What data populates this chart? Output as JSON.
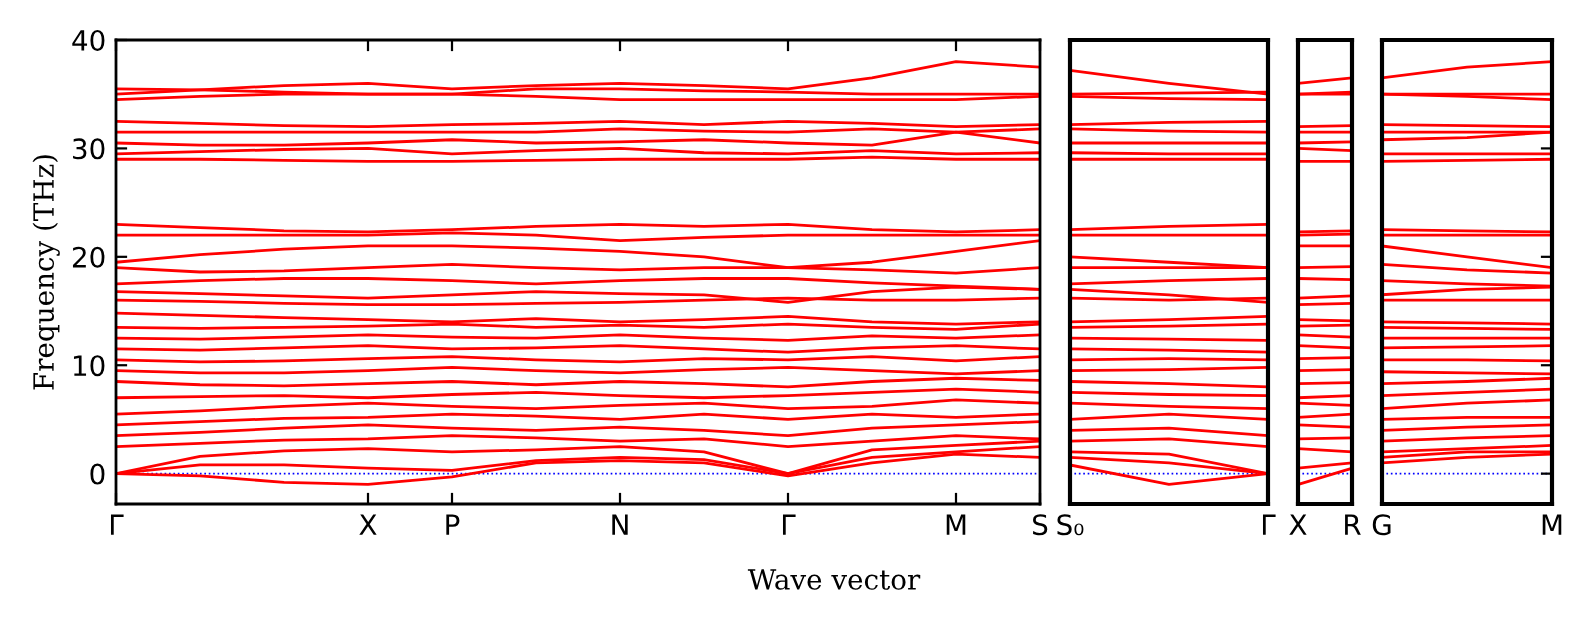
{
  "chart_data": [
    {
      "type": "line",
      "xlabel": "Wave vector",
      "ylabel": "Frequency (THz)",
      "categories": [
        "Γ",
        null,
        null,
        "X",
        "P",
        null,
        "N",
        null,
        "Γ",
        null,
        "M",
        "S"
      ],
      "ylim": [
        -2.8,
        40
      ],
      "yticks": [
        0,
        10,
        20,
        30,
        40
      ],
      "ref_lines": [
        {
          "axis": "y",
          "value": 0,
          "color": "#0000ff",
          "line_style": "dotted"
        }
      ],
      "series": [
        {
          "color": "#ff0000",
          "values": [
            0,
            -0.2,
            -0.8,
            -1.0,
            -0.3,
            1.0,
            1.2,
            1.0,
            -0.2,
            1.0,
            1.8,
            1.5
          ]
        },
        {
          "color": "#ff0000",
          "values": [
            0,
            0.8,
            0.8,
            0.5,
            0.3,
            1.2,
            1.5,
            1.3,
            0,
            1.5,
            2.0,
            2.5
          ]
        },
        {
          "color": "#ff0000",
          "values": [
            0,
            1.6,
            2.1,
            2.3,
            2.0,
            2.2,
            2.5,
            2.0,
            0,
            2.2,
            2.6,
            3.0
          ]
        },
        {
          "color": "#ff0000",
          "values": [
            2.5,
            2.8,
            3.1,
            3.2,
            3.5,
            3.3,
            3.0,
            3.2,
            2.5,
            3.0,
            3.5,
            3.2
          ]
        },
        {
          "color": "#ff0000",
          "values": [
            3.5,
            3.8,
            4.2,
            4.5,
            4.2,
            4.0,
            4.3,
            4.0,
            3.5,
            4.2,
            4.5,
            4.8
          ]
        },
        {
          "color": "#ff0000",
          "values": [
            4.5,
            4.8,
            5.1,
            5.2,
            5.5,
            5.3,
            5.0,
            5.5,
            5.0,
            5.5,
            5.2,
            5.5
          ]
        },
        {
          "color": "#ff0000",
          "values": [
            5.5,
            5.8,
            6.2,
            6.5,
            6.2,
            6.0,
            6.3,
            6.5,
            6.0,
            6.2,
            6.8,
            6.5
          ]
        },
        {
          "color": "#ff0000",
          "values": [
            7,
            7.1,
            7.2,
            7.0,
            7.3,
            7.5,
            7.2,
            7.0,
            7.2,
            7.5,
            7.8,
            7.5
          ]
        },
        {
          "color": "#ff0000",
          "values": [
            8.5,
            8.2,
            8.1,
            8.3,
            8.5,
            8.2,
            8.5,
            8.3,
            8.0,
            8.5,
            8.8,
            8.6
          ]
        },
        {
          "color": "#ff0000",
          "values": [
            9.5,
            9.3,
            9.3,
            9.5,
            9.8,
            9.5,
            9.3,
            9.6,
            9.8,
            9.5,
            9.2,
            9.5
          ]
        },
        {
          "color": "#ff0000",
          "values": [
            10.5,
            10.3,
            10.4,
            10.6,
            10.8,
            10.5,
            10.3,
            10.6,
            10.5,
            10.8,
            10.4,
            10.8
          ]
        },
        {
          "color": "#ff0000",
          "values": [
            11.5,
            11.4,
            11.6,
            11.8,
            11.5,
            11.6,
            11.8,
            11.5,
            11.2,
            11.6,
            11.8,
            11.5
          ]
        },
        {
          "color": "#ff0000",
          "values": [
            12.5,
            12.4,
            12.6,
            12.8,
            12.6,
            12.5,
            12.8,
            12.5,
            12.3,
            12.7,
            12.5,
            12.8
          ]
        },
        {
          "color": "#ff0000",
          "values": [
            13.5,
            13.4,
            13.5,
            13.6,
            13.8,
            13.5,
            13.7,
            13.5,
            13.8,
            13.5,
            13.3,
            13.8
          ]
        },
        {
          "color": "#ff0000",
          "values": [
            14.8,
            14.6,
            14.4,
            14.2,
            14.0,
            14.3,
            14.0,
            14.2,
            14.5,
            14.0,
            13.8,
            14.0
          ]
        },
        {
          "color": "#ff0000",
          "values": [
            16.0,
            15.9,
            15.7,
            15.6,
            15.6,
            15.7,
            15.8,
            16.0,
            16.2,
            16.0,
            16.0,
            16.2
          ]
        },
        {
          "color": "#ff0000",
          "values": [
            16.8,
            16.6,
            16.4,
            16.2,
            16.5,
            16.8,
            16.6,
            16.5,
            15.8,
            16.8,
            17.2,
            17.0
          ]
        },
        {
          "color": "#ff0000",
          "values": [
            17.5,
            17.8,
            18.0,
            18.0,
            17.8,
            17.5,
            17.8,
            18.0,
            18.0,
            17.6,
            17.3,
            17.0
          ]
        },
        {
          "color": "#ff0000",
          "values": [
            19.0,
            18.6,
            18.7,
            19.0,
            19.3,
            19.0,
            18.8,
            19.0,
            19.0,
            18.8,
            18.5,
            19.0
          ]
        },
        {
          "color": "#ff0000",
          "values": [
            19.5,
            20.2,
            20.7,
            21.0,
            21.0,
            20.8,
            20.5,
            20.0,
            19.0,
            19.5,
            20.5,
            21.5
          ]
        },
        {
          "color": "#ff0000",
          "values": [
            22.0,
            22.0,
            22.0,
            22.0,
            22.2,
            22.0,
            21.5,
            21.8,
            22.0,
            22.0,
            22.0,
            22.0
          ]
        },
        {
          "color": "#ff0000",
          "values": [
            23.0,
            22.7,
            22.4,
            22.3,
            22.5,
            22.8,
            23.0,
            22.8,
            23.0,
            22.5,
            22.3,
            22.5
          ]
        },
        {
          "color": "#ff0000",
          "values": [
            29.0,
            29.0,
            28.9,
            28.8,
            28.8,
            28.9,
            29.0,
            29.0,
            29.0,
            29.2,
            29.0,
            29.0
          ]
        },
        {
          "color": "#ff0000",
          "values": [
            29.5,
            29.7,
            29.9,
            30.0,
            29.5,
            29.8,
            30.0,
            29.6,
            29.5,
            29.8,
            29.5,
            29.6
          ]
        },
        {
          "color": "#ff0000",
          "values": [
            30.5,
            30.3,
            30.3,
            30.5,
            30.8,
            30.5,
            30.6,
            30.8,
            30.5,
            30.3,
            31.5,
            30.5
          ]
        },
        {
          "color": "#ff0000",
          "values": [
            31.5,
            31.5,
            31.5,
            31.5,
            31.5,
            31.5,
            31.8,
            31.6,
            31.5,
            31.8,
            31.5,
            31.8
          ]
        },
        {
          "color": "#ff0000",
          "values": [
            32.5,
            32.3,
            32.1,
            32.0,
            32.2,
            32.3,
            32.5,
            32.2,
            32.5,
            32.3,
            32.0,
            32.2
          ]
        },
        {
          "color": "#ff0000",
          "values": [
            34.5,
            34.8,
            35.0,
            35.0,
            35.0,
            34.8,
            34.5,
            34.5,
            34.5,
            34.5,
            34.5,
            34.8
          ]
        },
        {
          "color": "#ff0000",
          "values": [
            35.0,
            35.4,
            35.8,
            36.0,
            35.5,
            35.8,
            36.0,
            35.8,
            35.5,
            36.5,
            38.0,
            37.5
          ]
        },
        {
          "color": "#ff0000",
          "values": [
            35.5,
            35.4,
            35.2,
            35.0,
            35.0,
            35.5,
            35.5,
            35.3,
            35.2,
            35.0,
            35.0,
            35.0
          ]
        }
      ]
    },
    {
      "type": "line",
      "tick_labels": "x",
      "categories": [
        "S₀",
        null,
        "Γ"
      ],
      "ylim": [
        -2.8,
        40
      ],
      "ref_lines": [
        {
          "axis": "y",
          "value": 0,
          "color": "#0000ff",
          "line_style": "dotted"
        }
      ],
      "series": [
        {
          "color": "#ff0000",
          "values": [
            0.8,
            -1.0,
            0
          ]
        },
        {
          "color": "#ff0000",
          "values": [
            1.5,
            1.0,
            0
          ]
        },
        {
          "color": "#ff0000",
          "values": [
            2.0,
            1.8,
            0
          ]
        },
        {
          "color": "#ff0000",
          "values": [
            3.0,
            3.2,
            2.5
          ]
        },
        {
          "color": "#ff0000",
          "values": [
            4.0,
            4.2,
            3.5
          ]
        },
        {
          "color": "#ff0000",
          "values": [
            5.0,
            5.5,
            5.0
          ]
        },
        {
          "color": "#ff0000",
          "values": [
            6.5,
            6.2,
            6.0
          ]
        },
        {
          "color": "#ff0000",
          "values": [
            7.5,
            7.3,
            7.2
          ]
        },
        {
          "color": "#ff0000",
          "values": [
            8.5,
            8.3,
            8.0
          ]
        },
        {
          "color": "#ff0000",
          "values": [
            9.5,
            9.6,
            9.8
          ]
        },
        {
          "color": "#ff0000",
          "values": [
            10.5,
            10.6,
            10.5
          ]
        },
        {
          "color": "#ff0000",
          "values": [
            11.5,
            11.4,
            11.2
          ]
        },
        {
          "color": "#ff0000",
          "values": [
            12.5,
            12.4,
            12.3
          ]
        },
        {
          "color": "#ff0000",
          "values": [
            13.5,
            13.6,
            13.8
          ]
        },
        {
          "color": "#ff0000",
          "values": [
            14.0,
            14.2,
            14.5
          ]
        },
        {
          "color": "#ff0000",
          "values": [
            16.2,
            16.0,
            16.2
          ]
        },
        {
          "color": "#ff0000",
          "values": [
            17.0,
            16.5,
            15.8
          ]
        },
        {
          "color": "#ff0000",
          "values": [
            17.5,
            17.8,
            18.0
          ]
        },
        {
          "color": "#ff0000",
          "values": [
            19.0,
            19.0,
            19.0
          ]
        },
        {
          "color": "#ff0000",
          "values": [
            20.0,
            19.5,
            19.0
          ]
        },
        {
          "color": "#ff0000",
          "values": [
            22.0,
            22.0,
            22.0
          ]
        },
        {
          "color": "#ff0000",
          "values": [
            22.5,
            22.8,
            23.0
          ]
        },
        {
          "color": "#ff0000",
          "values": [
            29.0,
            29.0,
            29.0
          ]
        },
        {
          "color": "#ff0000",
          "values": [
            29.6,
            29.5,
            29.5
          ]
        },
        {
          "color": "#ff0000",
          "values": [
            30.5,
            30.5,
            30.5
          ]
        },
        {
          "color": "#ff0000",
          "values": [
            31.8,
            31.6,
            31.5
          ]
        },
        {
          "color": "#ff0000",
          "values": [
            32.2,
            32.4,
            32.5
          ]
        },
        {
          "color": "#ff0000",
          "values": [
            34.8,
            34.6,
            34.5
          ]
        },
        {
          "color": "#ff0000",
          "values": [
            37.2,
            36.0,
            35.0
          ]
        },
        {
          "color": "#ff0000",
          "values": [
            35.0,
            35.1,
            35.2
          ]
        }
      ]
    },
    {
      "type": "line",
      "tick_labels": "x",
      "categories": [
        "X",
        "R"
      ],
      "ylim": [
        -2.8,
        40
      ],
      "ref_lines": [
        {
          "axis": "y",
          "value": 0,
          "color": "#0000ff",
          "line_style": "dotted"
        }
      ],
      "series": [
        {
          "color": "#ff0000",
          "values": [
            -1.0,
            0.5
          ]
        },
        {
          "color": "#ff0000",
          "values": [
            0.5,
            1.0
          ]
        },
        {
          "color": "#ff0000",
          "values": [
            2.3,
            2.0
          ]
        },
        {
          "color": "#ff0000",
          "values": [
            3.2,
            3.3
          ]
        },
        {
          "color": "#ff0000",
          "values": [
            4.5,
            4.3
          ]
        },
        {
          "color": "#ff0000",
          "values": [
            5.2,
            5.5
          ]
        },
        {
          "color": "#ff0000",
          "values": [
            6.5,
            6.3
          ]
        },
        {
          "color": "#ff0000",
          "values": [
            7.0,
            7.2
          ]
        },
        {
          "color": "#ff0000",
          "values": [
            8.3,
            8.4
          ]
        },
        {
          "color": "#ff0000",
          "values": [
            9.5,
            9.6
          ]
        },
        {
          "color": "#ff0000",
          "values": [
            10.6,
            10.7
          ]
        },
        {
          "color": "#ff0000",
          "values": [
            11.8,
            11.6
          ]
        },
        {
          "color": "#ff0000",
          "values": [
            12.8,
            12.6
          ]
        },
        {
          "color": "#ff0000",
          "values": [
            13.6,
            13.7
          ]
        },
        {
          "color": "#ff0000",
          "values": [
            14.2,
            14.1
          ]
        },
        {
          "color": "#ff0000",
          "values": [
            15.6,
            15.7
          ]
        },
        {
          "color": "#ff0000",
          "values": [
            16.2,
            16.4
          ]
        },
        {
          "color": "#ff0000",
          "values": [
            18.0,
            17.9
          ]
        },
        {
          "color": "#ff0000",
          "values": [
            19.0,
            19.1
          ]
        },
        {
          "color": "#ff0000",
          "values": [
            21.0,
            21.0
          ]
        },
        {
          "color": "#ff0000",
          "values": [
            22.0,
            22.1
          ]
        },
        {
          "color": "#ff0000",
          "values": [
            22.3,
            22.4
          ]
        },
        {
          "color": "#ff0000",
          "values": [
            28.8,
            28.8
          ]
        },
        {
          "color": "#ff0000",
          "values": [
            30.0,
            29.8
          ]
        },
        {
          "color": "#ff0000",
          "values": [
            30.5,
            30.6
          ]
        },
        {
          "color": "#ff0000",
          "values": [
            31.5,
            31.5
          ]
        },
        {
          "color": "#ff0000",
          "values": [
            32.0,
            32.1
          ]
        },
        {
          "color": "#ff0000",
          "values": [
            35.0,
            35.0
          ]
        },
        {
          "color": "#ff0000",
          "values": [
            36.0,
            36.5
          ]
        },
        {
          "color": "#ff0000",
          "values": [
            35.0,
            35.2
          ]
        }
      ]
    },
    {
      "type": "line",
      "tick_labels": "x",
      "categories": [
        "G",
        null,
        "M"
      ],
      "ylim": [
        -2.8,
        40
      ],
      "yticks": [
        {
          "value": 0,
          "label": null
        },
        {
          "value": 10,
          "label": null
        },
        {
          "value": 20,
          "label": null
        },
        {
          "value": 30,
          "label": null
        },
        {
          "value": 40,
          "label": null
        }
      ],
      "ref_lines": [
        {
          "axis": "y",
          "value": 0,
          "color": "#0000ff",
          "line_style": "dotted"
        }
      ],
      "series": [
        {
          "color": "#ff0000",
          "values": [
            1.0,
            1.5,
            1.8
          ]
        },
        {
          "color": "#ff0000",
          "values": [
            1.5,
            2.0,
            2.0
          ]
        },
        {
          "color": "#ff0000",
          "values": [
            2.0,
            2.3,
            2.6
          ]
        },
        {
          "color": "#ff0000",
          "values": [
            3.0,
            3.3,
            3.5
          ]
        },
        {
          "color": "#ff0000",
          "values": [
            4.0,
            4.3,
            4.5
          ]
        },
        {
          "color": "#ff0000",
          "values": [
            5.0,
            5.2,
            5.2
          ]
        },
        {
          "color": "#ff0000",
          "values": [
            6.0,
            6.5,
            6.8
          ]
        },
        {
          "color": "#ff0000",
          "values": [
            7.2,
            7.5,
            7.8
          ]
        },
        {
          "color": "#ff0000",
          "values": [
            8.3,
            8.5,
            8.8
          ]
        },
        {
          "color": "#ff0000",
          "values": [
            9.4,
            9.3,
            9.2
          ]
        },
        {
          "color": "#ff0000",
          "values": [
            10.5,
            10.5,
            10.4
          ]
        },
        {
          "color": "#ff0000",
          "values": [
            11.6,
            11.7,
            11.8
          ]
        },
        {
          "color": "#ff0000",
          "values": [
            12.5,
            12.5,
            12.5
          ]
        },
        {
          "color": "#ff0000",
          "values": [
            13.5,
            13.4,
            13.3
          ]
        },
        {
          "color": "#ff0000",
          "values": [
            14.0,
            13.9,
            13.8
          ]
        },
        {
          "color": "#ff0000",
          "values": [
            16.0,
            16.0,
            16.0
          ]
        },
        {
          "color": "#ff0000",
          "values": [
            16.5,
            17.0,
            17.2
          ]
        },
        {
          "color": "#ff0000",
          "values": [
            17.8,
            17.5,
            17.3
          ]
        },
        {
          "color": "#ff0000",
          "values": [
            19.3,
            18.8,
            18.5
          ]
        },
        {
          "color": "#ff0000",
          "values": [
            21.0,
            20.0,
            19.0
          ]
        },
        {
          "color": "#ff0000",
          "values": [
            22.0,
            22.0,
            22.0
          ]
        },
        {
          "color": "#ff0000",
          "values": [
            22.5,
            22.4,
            22.3
          ]
        },
        {
          "color": "#ff0000",
          "values": [
            28.8,
            28.9,
            29.0
          ]
        },
        {
          "color": "#ff0000",
          "values": [
            29.5,
            29.5,
            29.5
          ]
        },
        {
          "color": "#ff0000",
          "values": [
            30.8,
            31.0,
            31.5
          ]
        },
        {
          "color": "#ff0000",
          "values": [
            31.5,
            31.5,
            31.5
          ]
        },
        {
          "color": "#ff0000",
          "values": [
            32.2,
            32.1,
            32.0
          ]
        },
        {
          "color": "#ff0000",
          "values": [
            35.0,
            34.8,
            34.5
          ]
        },
        {
          "color": "#ff0000",
          "values": [
            36.5,
            37.5,
            38.0
          ]
        },
        {
          "color": "#ff0000",
          "values": [
            35.0,
            35.0,
            35.0
          ]
        }
      ]
    }
  ]
}
